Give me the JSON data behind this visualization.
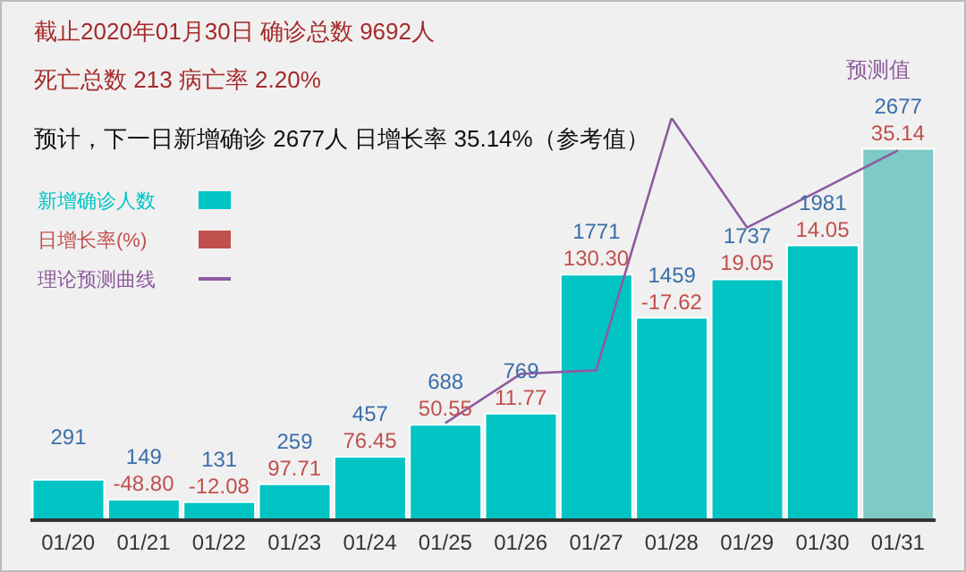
{
  "chart_data": {
    "type": "bar",
    "title": "截止2020年01月30日 确诊总数 9692人",
    "subtitle": "死亡总数 213 病亡率 2.20%",
    "annotations": [
      "预计，下一日新增确诊 2677人 日增长率 35.14%（参考值）",
      "预测值",
      {
        "text": "-48.80",
        "x": "01/21",
        "y": 149
      },
      {
        "text": "-12.08",
        "x": "01/22",
        "y": 131
      },
      {
        "text": "97.71",
        "x": "01/23",
        "y": 259
      },
      {
        "text": "76.45",
        "x": "01/24",
        "y": 457
      },
      {
        "text": "50.55",
        "x": "01/25",
        "y": 688
      },
      {
        "text": "11.77",
        "x": "01/26",
        "y": 769
      },
      {
        "text": "130.30",
        "x": "01/27",
        "y": 1771
      },
      {
        "text": "-17.62",
        "x": "01/28",
        "y": 1459
      },
      {
        "text": "19.05",
        "x": "01/29",
        "y": 1737
      },
      {
        "text": "14.05",
        "x": "01/30",
        "y": 1981
      },
      {
        "text": "35.14",
        "x": "01/31",
        "y": 2677
      }
    ],
    "categories": [
      "01/20",
      "01/21",
      "01/22",
      "01/23",
      "01/24",
      "01/25",
      "01/26",
      "01/27",
      "01/28",
      "01/29",
      "01/30",
      "01/31"
    ],
    "series": [
      {
        "name": "新增确诊人数",
        "color": "#00c4c4",
        "colors": [
          "#00c4c4",
          "#00c4c4",
          "#00c4c4",
          "#00c4c4",
          "#00c4c4",
          "#00c4c4",
          "#00c4c4",
          "#00c4c4",
          "#00c4c4",
          "#00c4c4",
          "#00c4c4",
          "#7fc9c6"
        ],
        "values": [
          291,
          149,
          131,
          259,
          457,
          688,
          769,
          1771,
          1459,
          1737,
          1981,
          2677
        ],
        "value_labels": [
          "291",
          "149",
          "131",
          "259",
          "457",
          "688",
          "769",
          "1771",
          "1459",
          "1737",
          "1981",
          "2677"
        ]
      },
      {
        "name": "日增长率(%)",
        "type": "scatter",
        "color": "#c0504d",
        "values": [
          null,
          null,
          null,
          null,
          null,
          null,
          null,
          null,
          null,
          null,
          null,
          null
        ]
      },
      {
        "name": "理论预测曲线",
        "type": "line",
        "color": "#8e5a9e",
        "values": [
          null,
          null,
          null,
          null,
          null,
          700,
          1055,
          1080,
          2900,
          2110,
          null,
          2665
        ]
      }
    ],
    "tick_labels": "x",
    "legend": "top left"
  }
}
